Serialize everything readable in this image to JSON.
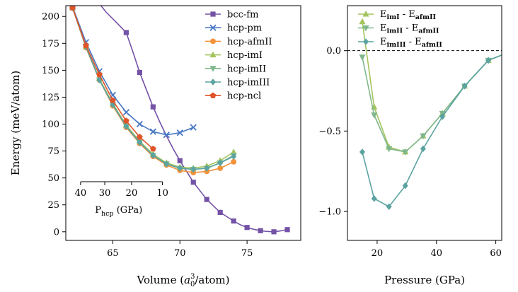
{
  "chart_data": [
    {
      "type": "line",
      "xlabel": "Volume (a0^3/atom)",
      "xlabel_parts": {
        "pre": "Volume (",
        "base": "a",
        "sub": "0",
        "sup": "3",
        "post": "/atom)"
      },
      "ylabel": "Energy (meV/atom)",
      "xlim": [
        61.5,
        79
      ],
      "ylim": [
        -8,
        210
      ],
      "xticks": [
        65,
        70,
        75
      ],
      "yticks": [
        0,
        25,
        50,
        75,
        100,
        125,
        150,
        175,
        200
      ],
      "grid": false,
      "legend_position": "upper-right",
      "series": [
        {
          "name": "bcc-fm",
          "color": "#7452a6",
          "marker": "square",
          "x": [
            66,
            67,
            68,
            70,
            71,
            72,
            73,
            74,
            75,
            76,
            77,
            78
          ],
          "y": [
            185,
            148,
            116,
            66,
            46,
            30,
            18,
            10,
            4,
            1,
            0,
            2
          ],
          "curve_x": [
            63.8,
            64.5,
            65.3,
            66,
            66.5,
            67,
            67.5,
            68,
            68.5,
            69,
            69.5,
            70,
            70.5,
            71,
            71.5,
            72,
            72.5,
            73,
            73.5,
            74,
            74.5,
            75,
            75.5,
            76,
            76.5,
            77,
            77.5,
            78
          ],
          "curve_y": [
            215,
            204,
            194,
            185,
            167,
            148,
            132,
            116,
            102,
            89,
            77,
            66,
            56,
            46,
            38,
            30,
            24,
            18,
            14,
            10,
            6.5,
            4,
            2.3,
            1,
            0.3,
            0,
            0.8,
            2
          ]
        },
        {
          "name": "hcp-pm",
          "color": "#4a78c4",
          "marker": "x",
          "x": [
            62,
            63,
            64,
            65,
            66,
            67,
            68,
            69,
            70,
            71
          ],
          "y": [
            209,
            176,
            149,
            127,
            111,
            100,
            93,
            90,
            92,
            97
          ]
        },
        {
          "name": "hcp-afmII",
          "color": "#f2923b",
          "marker": "circle",
          "x": [
            62,
            63,
            64,
            65,
            66,
            67,
            68,
            69,
            70,
            71,
            72,
            73,
            74
          ],
          "y": [
            208,
            171,
            141,
            117,
            97,
            82,
            70,
            62,
            57,
            55,
            56,
            59,
            65
          ]
        },
        {
          "name": "hcp-imI",
          "color": "#a3c45e",
          "marker": "triangle-up",
          "x": [
            62,
            63,
            64,
            65,
            66,
            67,
            68,
            69,
            70,
            71,
            72,
            73,
            74
          ],
          "y": [
            208,
            172,
            142,
            119,
            99,
            84,
            72,
            64,
            60,
            59,
            61,
            66,
            74
          ]
        },
        {
          "name": "hcp-imII",
          "color": "#7fb78c",
          "marker": "triangle-down",
          "x": [
            62,
            63,
            64,
            65,
            66,
            67,
            68,
            69,
            70,
            71,
            72,
            73,
            74
          ],
          "y": [
            208,
            172,
            141,
            118,
            98,
            83,
            71,
            63,
            59,
            58,
            59,
            64,
            71
          ]
        },
        {
          "name": "hcp-imIII",
          "color": "#5aa3a0",
          "marker": "diamond",
          "x": [
            62,
            63,
            64,
            65,
            66,
            67,
            68,
            69,
            70,
            71,
            72,
            73,
            74
          ],
          "y": [
            208,
            172,
            141,
            118,
            98,
            83,
            71,
            63,
            59,
            58,
            59,
            64,
            70
          ]
        },
        {
          "name": "hcp-ncl",
          "color": "#e0542a",
          "marker": "pentagon",
          "x": [
            62,
            63,
            64,
            65,
            66,
            67,
            68
          ],
          "y": [
            208,
            173,
            146,
            122,
            103,
            88,
            77
          ]
        }
      ],
      "secondary_axis": {
        "label": "P_hcp (GPa)",
        "label_parts": {
          "base": "P",
          "sub": "hcp",
          "post": " (GPa)"
        },
        "ticks": [
          40,
          30,
          20,
          10
        ],
        "volumes": [
          62.6,
          64.4,
          66.4,
          68.7
        ]
      }
    },
    {
      "type": "line",
      "xlabel": "Pressure (GPa)",
      "ylabel": "",
      "xlim": [
        10,
        62
      ],
      "ylim": [
        -1.18,
        0.28
      ],
      "xticks": [
        20,
        40,
        60
      ],
      "yticks": [
        0.0,
        -0.5,
        -1.0
      ],
      "ytick_labels": [
        "0.0",
        "−0.5",
        "−1.0"
      ],
      "grid": false,
      "reference_line": {
        "y": 0.0,
        "style": "dashed"
      },
      "legend_position": "upper-right",
      "series": [
        {
          "name": "E_imI - E_afmII",
          "legend": {
            "a": "E",
            "asub": "imI",
            "b": "E",
            "bsub": "afmII"
          },
          "color": "#a3c45e",
          "marker": "triangle-up",
          "x": [
            15,
            19,
            24,
            29.5,
            35.5,
            42,
            49.5,
            57.5,
            63
          ],
          "y": [
            0.18,
            -0.35,
            -0.6,
            -0.63,
            -0.53,
            -0.39,
            -0.22,
            -0.06,
            -0.02
          ]
        },
        {
          "name": "E_imII - E_afmII",
          "legend": {
            "a": "E",
            "asub": "imII",
            "b": "E",
            "bsub": "afmII"
          },
          "color": "#7fb78c",
          "marker": "triangle-down",
          "x": [
            15,
            19,
            24,
            29.5,
            35.5,
            42,
            49.5,
            57.5,
            63
          ],
          "y": [
            -0.04,
            -0.4,
            -0.61,
            -0.63,
            -0.53,
            -0.39,
            -0.22,
            -0.06,
            -0.02
          ]
        },
        {
          "name": "E_imIII - E_afmII",
          "legend": {
            "a": "E",
            "asub": "imIII",
            "b": "E",
            "bsub": "afmII"
          },
          "color": "#5aa3a0",
          "marker": "diamond",
          "x": [
            15,
            19,
            24,
            29.5,
            35.5,
            42,
            49.5,
            57.5,
            63
          ],
          "y": [
            -0.63,
            -0.92,
            -0.97,
            -0.84,
            -0.61,
            -0.41,
            -0.22,
            -0.06,
            -0.02
          ]
        }
      ]
    }
  ]
}
